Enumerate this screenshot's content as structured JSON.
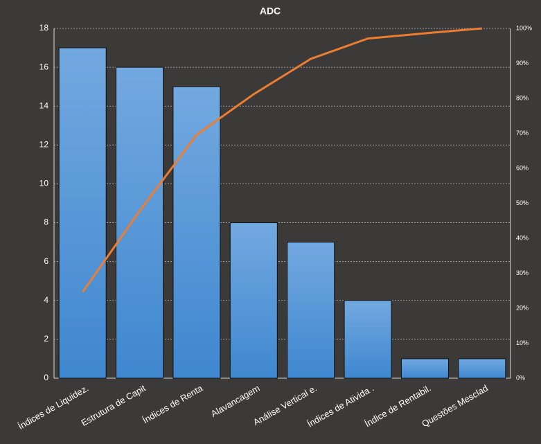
{
  "chart_data": {
    "type": "pareto",
    "title": "ADC",
    "categories": [
      "Índices de Liquidez.",
      "Estrutura de Capit",
      "Índices de Renta",
      "Alavancagem",
      "Análise Vertical e.",
      "Índices de Ativida .",
      "Índice de Rentabil.",
      "Questões Mesclad"
    ],
    "series": [
      {
        "type": "bar",
        "color": "#4a90d4",
        "values": [
          17,
          16,
          15,
          8,
          7,
          4,
          1,
          1
        ]
      },
      {
        "type": "line",
        "axis": "y2",
        "color": "#ed7d31",
        "values": [
          24.6,
          47.8,
          69.6,
          81.2,
          91.3,
          97.1,
          98.6,
          100
        ]
      }
    ],
    "ylim": [
      0,
      18
    ],
    "yticks": [
      0,
      2,
      4,
      6,
      8,
      10,
      12,
      14,
      16,
      18
    ],
    "y2lim": [
      0,
      100
    ],
    "y2ticks": [
      {
        "value": 0,
        "label": "0%"
      },
      {
        "value": 10,
        "label": "10%"
      },
      {
        "value": 20,
        "label": "20%"
      },
      {
        "value": 30,
        "label": "30%"
      },
      {
        "value": 40,
        "label": "40%"
      },
      {
        "value": 50,
        "label": "50%"
      },
      {
        "value": 60,
        "label": "60%"
      },
      {
        "value": 70,
        "label": "70%"
      },
      {
        "value": 80,
        "label": "80%"
      },
      {
        "value": 90,
        "label": "90%"
      },
      {
        "value": 100,
        "label": "100%"
      }
    ],
    "grid": true
  }
}
